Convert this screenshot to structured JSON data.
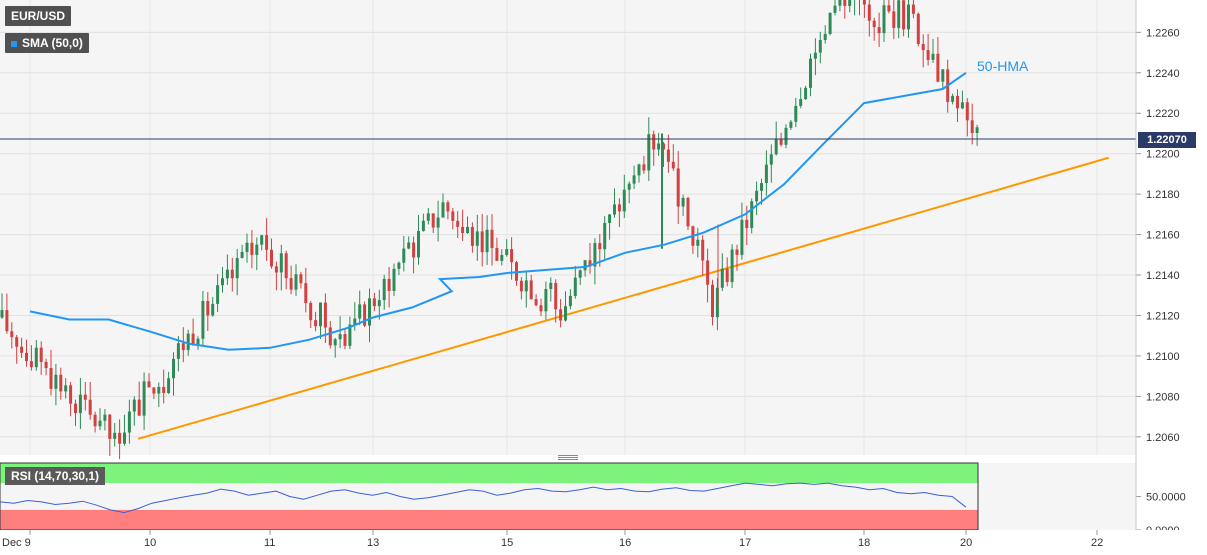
{
  "symbol_label": "EUR/USD",
  "indicator_label": "SMA (50,0)",
  "hma_label": "50-HMA",
  "rsi_label": "RSI (14,70,30,1)",
  "current_price_label": "1.22070",
  "colors": {
    "up_candle": "#2e8b57",
    "down_candle": "#d24040",
    "hma_line": "#2196f3",
    "trend_line": "#ff9800",
    "rsi_line": "#3a5fd9",
    "rsi_overbought_zone": "#7cf47c",
    "rsi_oversold_zone": "#ff7f7f",
    "price_tag_bg": "#2b3a67",
    "price_line": "#2b3a67"
  },
  "chart_data": [
    {
      "type": "candlestick",
      "title": "EUR/USD",
      "interval": "1H",
      "x_tick_labels": [
        "Dec 9",
        "10",
        "11",
        "13",
        "15",
        "16",
        "17",
        "18",
        "20",
        "22"
      ],
      "y_tick_labels": [
        "1.2060",
        "1.2080",
        "1.2100",
        "1.2120",
        "1.2140",
        "1.2160",
        "1.2180",
        "1.2200",
        "1.2220",
        "1.2240",
        "1.2260"
      ],
      "ylim": [
        1.2051,
        1.2276
      ],
      "current_price": 1.2207,
      "grid": true,
      "key_points": [
        {
          "label": "Dec 9 start",
          "price": 1.212
        },
        {
          "label": "Dec 10 low",
          "price": 1.2059
        },
        {
          "label": "Dec 11 high",
          "price": 1.2158
        },
        {
          "label": "Dec 13 low",
          "price": 1.2106
        },
        {
          "label": "Dec 14 high",
          "price": 1.2175
        },
        {
          "label": "Dec 15 low",
          "price": 1.2122
        },
        {
          "label": "Dec 16 spike high",
          "price": 1.221
        },
        {
          "label": "Dec 16 wick low",
          "price": 1.2125
        },
        {
          "label": "Dec 17 high",
          "price": 1.2272
        },
        {
          "label": "Dec 18 high",
          "price": 1.2268
        },
        {
          "label": "Dec 20 last",
          "price": 1.2207
        }
      ],
      "series": [
        {
          "name": "50-HMA",
          "points": [
            {
              "date": "Dec 9 00:00",
              "value": 1.2122
            },
            {
              "date": "Dec 9 08:00",
              "value": 1.2118
            },
            {
              "date": "Dec 9 16:00",
              "value": 1.2118
            },
            {
              "date": "Dec 10 00:00",
              "value": 1.2112
            },
            {
              "date": "Dec 10 08:00",
              "value": 1.2106
            },
            {
              "date": "Dec 10 16:00",
              "value": 1.2103
            },
            {
              "date": "Dec 11 00:00",
              "value": 1.2104
            },
            {
              "date": "Dec 11 08:00",
              "value": 1.2108
            },
            {
              "date": "Dec 11 16:00",
              "value": 1.2114
            },
            {
              "date": "Dec 13 00:00",
              "value": 1.2119
            },
            {
              "date": "Dec 13 08:00",
              "value": 1.2124
            },
            {
              "date": "Dec 13 16:00",
              "value": 1.2132
            },
            {
              "date": "Dec 14 00:00",
              "value": 1.2138
            },
            {
              "date": "Dec 14 08:00",
              "value": 1.2139
            },
            {
              "date": "Dec 15 00:00",
              "value": 1.2141
            },
            {
              "date": "Dec 15 16:00",
              "value": 1.2144
            },
            {
              "date": "Dec 16 00:00",
              "value": 1.2151
            },
            {
              "date": "Dec 16 08:00",
              "value": 1.2155
            },
            {
              "date": "Dec 16 16:00",
              "value": 1.2161
            },
            {
              "date": "Dec 17 00:00",
              "value": 1.217
            },
            {
              "date": "Dec 17 08:00",
              "value": 1.2185
            },
            {
              "date": "Dec 17 16:00",
              "value": 1.2205
            },
            {
              "date": "Dec 18 00:00",
              "value": 1.2225
            },
            {
              "date": "Dec 18 16:00",
              "value": 1.2232
            },
            {
              "date": "Dec 20 00:00",
              "value": 1.224
            }
          ]
        },
        {
          "name": "Trend line",
          "points": [
            {
              "date": "Dec 9 22:00",
              "value": 1.2059
            },
            {
              "date": "Dec 21 16:00",
              "value": 1.2198
            }
          ]
        }
      ]
    },
    {
      "type": "line",
      "title": "RSI (14,70,30,1)",
      "y_tick_labels": [
        "0.0000",
        "50.0000"
      ],
      "ylim": [
        0,
        100
      ],
      "overbought": 70,
      "oversold": 30,
      "series": [
        {
          "name": "RSI",
          "values": [
            42,
            40,
            44,
            42,
            38,
            40,
            43,
            37,
            30,
            26,
            32,
            40,
            44,
            48,
            52,
            55,
            61,
            58,
            52,
            55,
            58,
            50,
            46,
            52,
            58,
            60,
            55,
            52,
            56,
            50,
            46,
            48,
            52,
            56,
            60,
            58,
            52,
            55,
            60,
            62,
            58,
            57,
            60,
            64,
            60,
            62,
            58,
            57,
            61,
            63,
            59,
            58,
            62,
            66,
            70,
            68,
            66,
            69,
            70,
            68,
            70,
            66,
            64,
            60,
            62,
            56,
            54,
            56,
            52,
            50,
            34
          ]
        }
      ]
    }
  ]
}
